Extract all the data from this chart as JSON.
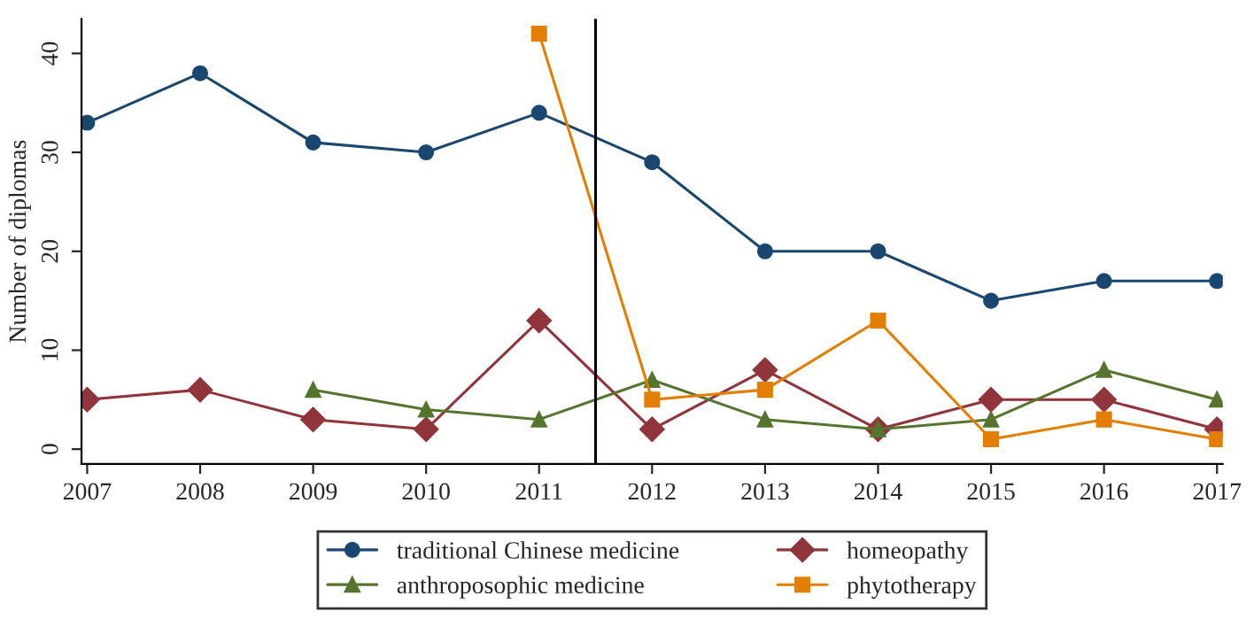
{
  "chart_data": {
    "type": "line",
    "ylabel": "Number of diplomas",
    "x": [
      2007,
      2008,
      2009,
      2010,
      2011,
      2012,
      2013,
      2014,
      2015,
      2016,
      2017
    ],
    "series": [
      {
        "name": "traditional Chinese medicine",
        "color": "#1a476f",
        "marker": "circle",
        "values": [
          33,
          38,
          31,
          30,
          34,
          29,
          20,
          20,
          15,
          17,
          17
        ]
      },
      {
        "name": "homeopathy",
        "color": "#90353b",
        "marker": "diamond",
        "values": [
          5,
          6,
          3,
          2,
          13,
          2,
          8,
          2,
          5,
          5,
          2
        ]
      },
      {
        "name": "anthroposophic medicine",
        "color": "#55752f",
        "marker": "triangle",
        "values": [
          null,
          null,
          6,
          4,
          3,
          7,
          3,
          2,
          3,
          8,
          5
        ]
      },
      {
        "name": "phytotherapy",
        "color": "#e37e00",
        "marker": "square",
        "values": [
          null,
          null,
          null,
          null,
          42,
          5,
          6,
          13,
          1,
          3,
          1
        ]
      }
    ],
    "xlim": [
      2006.95,
      2017.05
    ],
    "xticks": [
      2007,
      2008,
      2009,
      2010,
      2011,
      2012,
      2013,
      2014,
      2015,
      2016,
      2017
    ],
    "ylim": [
      -1.5,
      43.5
    ],
    "yticks": [
      0,
      10,
      20,
      30,
      40
    ],
    "ref_lines": [
      {
        "axis": "x",
        "value": 2011.5,
        "color": "#000000"
      }
    ],
    "line_style": "solid",
    "grid": false,
    "legend": "bottom"
  }
}
